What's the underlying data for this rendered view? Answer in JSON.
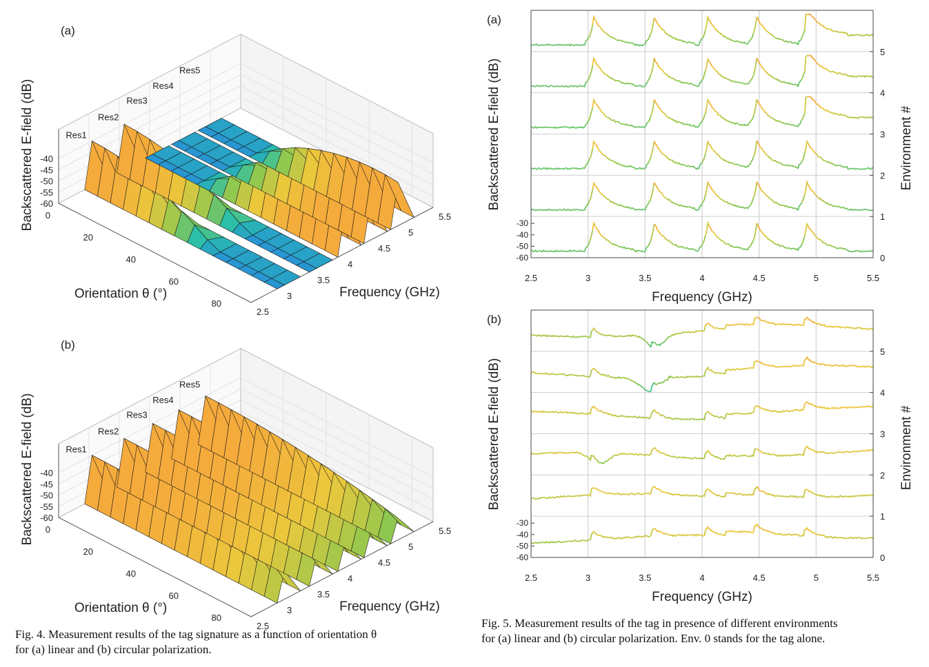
{
  "chart_data": [
    {
      "type": "3d-surface",
      "panel": "(a)",
      "zlabel": "Backscattered E-field (dB)",
      "xlabel": "Orientation θ (°)",
      "ylabel": "Frequency (GHz)",
      "z_ticks": [
        "-40",
        "-45",
        "-50",
        "-55",
        "-60"
      ],
      "theta_ticks": [
        "0",
        "20",
        "40",
        "60",
        "80"
      ],
      "freq_ticks": [
        "2.5",
        "3",
        "3.5",
        "4",
        "4.5",
        "5",
        "5.5"
      ],
      "annotations": [
        "Res1",
        "Res2",
        "Res3",
        "Res4",
        "Res5"
      ],
      "resonances_ghz": [
        3.05,
        3.58,
        4.05,
        4.48,
        4.92
      ],
      "peak_db": -40
    },
    {
      "type": "3d-surface",
      "panel": "(b)",
      "zlabel": "Backscattered E-field (dB)",
      "xlabel": "Orientation θ (°)",
      "ylabel": "Frequency (GHz)",
      "z_ticks": [
        "-40",
        "-45",
        "-50",
        "-55",
        "-60"
      ],
      "theta_ticks": [
        "0",
        "20",
        "40",
        "60",
        "80"
      ],
      "freq_ticks": [
        "2.5",
        "3",
        "3.5",
        "4",
        "4.5",
        "5",
        "5.5"
      ],
      "annotations": [
        "Res1",
        "Res2",
        "Res3",
        "Res4",
        "Res5"
      ],
      "resonances_ghz": [
        3.05,
        3.58,
        4.05,
        4.48,
        4.92
      ],
      "peak_db": -40
    },
    {
      "type": "line",
      "panel": "(a)",
      "xlabel": "Frequency (GHz)",
      "ylabel": "Backscattered E-field (dB)",
      "ylabel_right": "Environment #",
      "x_ticks": [
        "2.5",
        "3",
        "3.5",
        "4",
        "4.5",
        "5",
        "5.5"
      ],
      "y_ticks": [
        "-30",
        "-40",
        "-50",
        "-60"
      ],
      "env_ticks": [
        "0",
        "1",
        "2",
        "3",
        "4",
        "5"
      ],
      "xlim": [
        2.5,
        5.5
      ],
      "resonances_ghz": [
        3.05,
        3.58,
        4.05,
        4.48,
        4.92
      ]
    },
    {
      "type": "line",
      "panel": "(b)",
      "xlabel": "Frequency (GHz)",
      "ylabel": "Backscattered E-field (dB)",
      "ylabel_right": "Environment #",
      "x_ticks": [
        "2.5",
        "3",
        "3.5",
        "4",
        "4.5",
        "5",
        "5.5"
      ],
      "y_ticks": [
        "-30",
        "-40",
        "-50",
        "-60"
      ],
      "env_ticks": [
        "0",
        "1",
        "2",
        "3",
        "4",
        "5"
      ],
      "xlim": [
        2.5,
        5.5
      ],
      "resonances_ghz": [
        3.05,
        3.58,
        4.05,
        4.48,
        4.92
      ]
    }
  ],
  "captions": {
    "fig4_line1": "Fig. 4.  Measurement results of the tag signature as a function of orientation θ",
    "fig4_line2": "for (a) linear and (b) circular polarization.",
    "fig5_line1": "Fig. 5.  Measurement results of the tag in presence of different environments",
    "fig5_line2": "for (a) linear and (b) circular polarization. Env. 0 stands for the tag alone."
  }
}
